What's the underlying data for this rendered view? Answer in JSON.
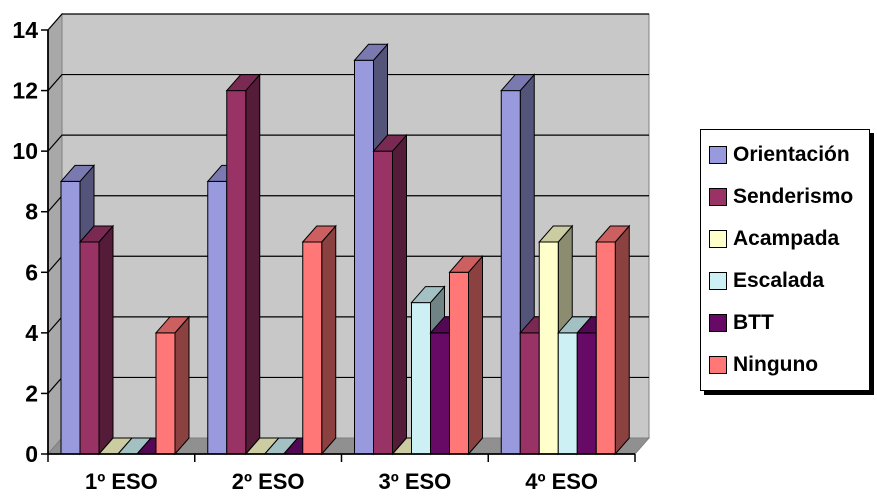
{
  "chart_data": {
    "type": "bar",
    "title": "",
    "xlabel": "",
    "ylabel": "",
    "ylim": [
      0,
      14
    ],
    "yticks": [
      0,
      2,
      4,
      6,
      8,
      10,
      12,
      14
    ],
    "grid": true,
    "legend_position": "right",
    "categories": [
      "1º ESO",
      "2º ESO",
      "3º ESO",
      "4º ESO"
    ],
    "series": [
      {
        "name": "Orientación",
        "values": [
          9,
          9,
          13,
          12
        ],
        "color": "#9999dd"
      },
      {
        "name": "Senderismo",
        "values": [
          7,
          12,
          10,
          4
        ],
        "color": "#993366"
      },
      {
        "name": "Acampada",
        "values": [
          0,
          0,
          0,
          7
        ],
        "color": "#ffffcc"
      },
      {
        "name": "Escalada",
        "values": [
          0,
          0,
          5,
          4
        ],
        "color": "#ccf0f4"
      },
      {
        "name": "BTT",
        "values": [
          0,
          0,
          4,
          4
        ],
        "color": "#660a66"
      },
      {
        "name": "Ninguno",
        "values": [
          4,
          7,
          6,
          7
        ],
        "color": "#ff7777"
      }
    ]
  }
}
